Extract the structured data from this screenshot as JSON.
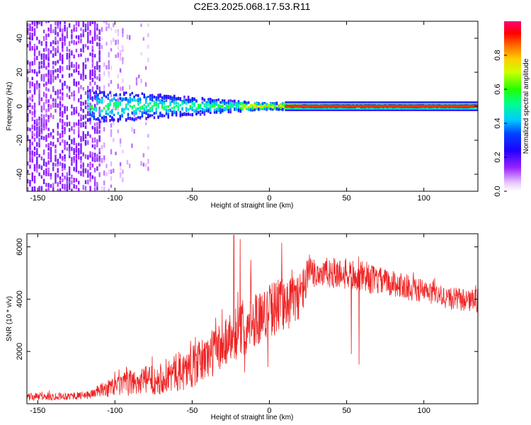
{
  "title": "C2E3.2025.068.17.53.R11",
  "chart_data": [
    {
      "type": "heatmap",
      "xlabel": "Height of straight line (km)",
      "ylabel": "Frequency (Hz)",
      "xlim": [
        -157,
        135
      ],
      "ylim": [
        -50,
        50
      ],
      "xticks": [
        -150,
        -100,
        -50,
        0,
        50,
        100
      ],
      "yticks": [
        -40,
        -20,
        0,
        20,
        40
      ],
      "colorbar": {
        "label": "Normalized spectral amplitude",
        "range": [
          0,
          1
        ],
        "ticks": [
          0.0,
          0.2,
          0.4,
          0.6,
          0.8
        ],
        "colors": [
          "#ffffff",
          "#d8a8ff",
          "#7a00e0",
          "#0000ff",
          "#00ccff",
          "#00ff44",
          "#ffff00",
          "#ff8800",
          "#ff0000",
          "#ff0066"
        ]
      },
      "features": {
        "noise_region_x": [
          -157,
          -80
        ],
        "signal_center_hz": 0,
        "signal_start_x": -118,
        "signal_spread_hz_at_start": 10,
        "strong_line_start_x": 10
      }
    },
    {
      "type": "line",
      "xlabel": "Height of straight line (km)",
      "ylabel": "SNR (10 * v/v)",
      "xlim": [
        -157,
        135
      ],
      "ylim": [
        0,
        6500
      ],
      "xticks": [
        -150,
        -100,
        -50,
        0,
        50,
        100
      ],
      "yticks": [
        2000,
        4000,
        6000
      ],
      "series": [
        {
          "color": "#ee2222",
          "envelope_x": [
            -157,
            -130,
            -118,
            -110,
            -100,
            -90,
            -80,
            -70,
            -60,
            -50,
            -40,
            -30,
            -25,
            -20,
            -15,
            -10,
            -5,
            0,
            5,
            10,
            15,
            20,
            25,
            30,
            40,
            50,
            60,
            70,
            80,
            90,
            100,
            110,
            120,
            130,
            135
          ],
          "envelope_y": [
            250,
            300,
            320,
            500,
            650,
            800,
            900,
            1000,
            1200,
            1400,
            1800,
            2300,
            2600,
            2800,
            3000,
            3200,
            3400,
            3600,
            3700,
            3900,
            3900,
            4200,
            4800,
            5000,
            5000,
            4950,
            4850,
            4700,
            4600,
            4450,
            4300,
            4100,
            4000,
            3950,
            3900
          ],
          "spread": [
            150,
            150,
            150,
            250,
            400,
            500,
            550,
            650,
            750,
            800,
            900,
            1000,
            1000,
            1100,
            1100,
            1100,
            1000,
            1000,
            1100,
            1100,
            1000,
            900,
            800,
            600,
            600,
            600,
            600,
            550,
            500,
            500,
            450,
            450,
            450,
            450,
            450
          ],
          "spikes": [
            {
              "x": -23,
              "y": 6450
            },
            {
              "x": -19,
              "y": 6300
            },
            {
              "x": -12,
              "y": 5500
            },
            {
              "x": 8,
              "y": 6150
            },
            {
              "x": 26,
              "y": 5700
            },
            {
              "x": 58,
              "y": 1500
            },
            {
              "x": 53,
              "y": 1900
            },
            {
              "x": -1,
              "y": 1400
            },
            {
              "x": -16,
              "y": 1200
            }
          ]
        }
      ]
    }
  ]
}
